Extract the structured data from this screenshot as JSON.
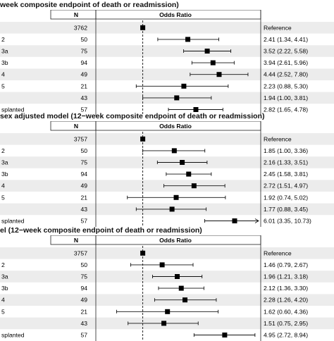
{
  "chart_data": [
    {
      "type": "forest",
      "title": "week composite endpoint of death or readmission)",
      "header": {
        "n": "N",
        "effect": "Odds Ratio"
      },
      "x_scale": "log",
      "xlim": [
        0.4,
        10
      ],
      "x_ticks": [
        "0.5",
        "1",
        "2",
        "4",
        "8"
      ],
      "reference_line": 1,
      "rows": [
        {
          "label": "",
          "n": "3762",
          "or": 1,
          "lo": null,
          "hi": null,
          "ci_text": "Reference"
        },
        {
          "label": "2",
          "n": "50",
          "or": 2.41,
          "lo": 1.34,
          "hi": 4.41,
          "ci_text": "2.41 (1.34, 4.41)"
        },
        {
          "label": "3a",
          "n": "75",
          "or": 3.52,
          "lo": 2.22,
          "hi": 5.58,
          "ci_text": "3.52 (2.22, 5.58)"
        },
        {
          "label": "3b",
          "n": "94",
          "or": 3.94,
          "lo": 2.61,
          "hi": 5.96,
          "ci_text": "3.94 (2.61, 5.96)"
        },
        {
          "label": "4",
          "n": "49",
          "or": 4.44,
          "lo": 2.52,
          "hi": 7.8,
          "ci_text": "4.44 (2.52, 7.80)"
        },
        {
          "label": "5",
          "n": "21",
          "or": 2.23,
          "lo": 0.88,
          "hi": 5.3,
          "ci_text": "2.23 (0.88, 5.30)"
        },
        {
          "label": "",
          "n": "43",
          "or": 1.94,
          "lo": 1.0,
          "hi": 3.81,
          "ci_text": "1.94 (1.00, 3.81)"
        },
        {
          "label": "splanted",
          "n": "57",
          "or": 2.82,
          "lo": 1.65,
          "hi": 4.78,
          "ci_text": "2.82 (1.65, 4.78)"
        }
      ]
    },
    {
      "type": "forest",
      "title": "sex adjusted model (12−week composite endpoint of death or readmission)",
      "header": {
        "n": "N",
        "effect": "Odds Ratio"
      },
      "x_scale": "log",
      "xlim": [
        0.4,
        10
      ],
      "x_ticks": [
        "0.5",
        "1",
        "2",
        "4",
        "8"
      ],
      "reference_line": 1,
      "rows": [
        {
          "label": "",
          "n": "3757",
          "or": 1,
          "lo": null,
          "hi": null,
          "ci_text": "Reference"
        },
        {
          "label": "2",
          "n": "50",
          "or": 1.85,
          "lo": 1.0,
          "hi": 3.36,
          "ci_text": "1.85 (1.00, 3.36)"
        },
        {
          "label": "3a",
          "n": "75",
          "or": 2.16,
          "lo": 1.33,
          "hi": 3.51,
          "ci_text": "2.16 (1.33, 3.51)"
        },
        {
          "label": "3b",
          "n": "94",
          "or": 2.45,
          "lo": 1.58,
          "hi": 3.81,
          "ci_text": "2.45 (1.58, 3.81)"
        },
        {
          "label": "4",
          "n": "49",
          "or": 2.72,
          "lo": 1.51,
          "hi": 4.97,
          "ci_text": "2.72 (1.51, 4.97)"
        },
        {
          "label": "5",
          "n": "21",
          "or": 1.92,
          "lo": 0.74,
          "hi": 5.02,
          "ci_text": "1.92 (0.74, 5.02)"
        },
        {
          "label": "",
          "n": "43",
          "or": 1.77,
          "lo": 0.88,
          "hi": 3.45,
          "ci_text": "1.77 (0.88, 3.45)"
        },
        {
          "label": "splanted",
          "n": "57",
          "or": 6.01,
          "lo": 3.35,
          "hi": 10.73,
          "ci_text": "6.01 (3.35, 10.73)"
        }
      ]
    },
    {
      "type": "forest",
      "title": "el (12−week composite endpoint of death or readmission)",
      "header": {
        "n": "N",
        "effect": "Odds Ratio"
      },
      "x_scale": "log",
      "xlim": [
        0.4,
        10
      ],
      "x_ticks": [
        "0.5",
        "1",
        "2",
        "4",
        "8"
      ],
      "reference_line": 1,
      "rows": [
        {
          "label": "",
          "n": "3757",
          "or": 1,
          "lo": null,
          "hi": null,
          "ci_text": "Reference"
        },
        {
          "label": "2",
          "n": "50",
          "or": 1.46,
          "lo": 0.79,
          "hi": 2.67,
          "ci_text": "1.46 (0.79, 2.67)"
        },
        {
          "label": "3a",
          "n": "75",
          "or": 1.96,
          "lo": 1.21,
          "hi": 3.18,
          "ci_text": "1.96 (1.21, 3.18)"
        },
        {
          "label": "3b",
          "n": "94",
          "or": 2.12,
          "lo": 1.36,
          "hi": 3.3,
          "ci_text": "2.12 (1.36, 3.30)"
        },
        {
          "label": "4",
          "n": "49",
          "or": 2.28,
          "lo": 1.26,
          "hi": 4.2,
          "ci_text": "2.28 (1.26, 4.20)"
        },
        {
          "label": "5",
          "n": "21",
          "or": 1.62,
          "lo": 0.6,
          "hi": 4.36,
          "ci_text": "1.62 (0.60, 4.36)"
        },
        {
          "label": "",
          "n": "43",
          "or": 1.51,
          "lo": 0.75,
          "hi": 2.95,
          "ci_text": "1.51 (0.75, 2.95)"
        },
        {
          "label": "splanted",
          "n": "57",
          "or": 4.95,
          "lo": 2.72,
          "hi": 8.94,
          "ci_text": "4.95 (2.72, 8.94)"
        }
      ]
    }
  ]
}
